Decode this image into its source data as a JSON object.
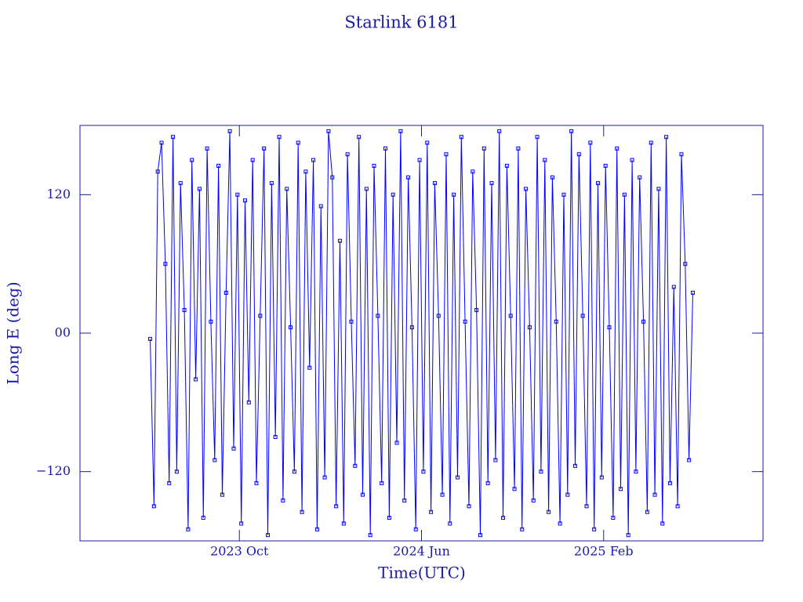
{
  "chart_data": {
    "type": "line",
    "title": "Starlink 6181",
    "x_label": "Time(UTC)",
    "y_label": "Long E (deg)",
    "color": "#0000ff",
    "xlim": [
      "2023-03",
      "2025-09"
    ],
    "xticks": [
      {
        "value": "2023-10",
        "label": "2023 Oct"
      },
      {
        "value": "2024-06",
        "label": "2024 Jun"
      },
      {
        "value": "2025-02",
        "label": "2025 Feb"
      }
    ],
    "ylim": [
      -180,
      180
    ],
    "yticks": [
      {
        "value": -120,
        "label": "−120"
      },
      {
        "value": 0,
        "label": "00"
      },
      120
    ],
    "x": [
      "2023-06",
      "2023-06",
      "2023-06",
      "2023-06",
      "2023-06",
      "2023-06",
      "2023-07",
      "2023-07",
      "2023-07",
      "2023-07",
      "2023-07",
      "2023-07",
      "2023-08",
      "2023-08",
      "2023-08",
      "2023-08",
      "2023-08",
      "2023-08",
      "2023-09",
      "2023-09",
      "2023-09",
      "2023-09",
      "2023-09",
      "2023-09",
      "2023-10",
      "2023-10",
      "2023-10",
      "2023-10",
      "2023-10",
      "2023-10",
      "2023-11",
      "2023-11",
      "2023-11",
      "2023-11",
      "2023-11",
      "2023-11",
      "2023-12",
      "2023-12",
      "2023-12",
      "2023-12",
      "2023-12",
      "2023-12",
      "2024-01",
      "2024-01",
      "2024-01",
      "2024-01",
      "2024-01",
      "2024-01",
      "2024-02",
      "2024-02",
      "2024-02",
      "2024-02",
      "2024-02",
      "2024-02",
      "2024-03",
      "2024-03",
      "2024-03",
      "2024-03",
      "2024-03",
      "2024-03",
      "2024-04",
      "2024-04",
      "2024-04",
      "2024-04",
      "2024-04",
      "2024-04",
      "2024-05",
      "2024-05",
      "2024-05",
      "2024-05",
      "2024-05",
      "2024-05",
      "2024-06",
      "2024-06",
      "2024-06",
      "2024-06",
      "2024-06",
      "2024-06",
      "2024-07",
      "2024-07",
      "2024-07",
      "2024-07",
      "2024-07",
      "2024-07",
      "2024-08",
      "2024-08",
      "2024-08",
      "2024-08",
      "2024-08",
      "2024-08",
      "2024-09",
      "2024-09",
      "2024-09",
      "2024-09",
      "2024-09",
      "2024-09",
      "2024-10",
      "2024-10",
      "2024-10",
      "2024-10",
      "2024-10",
      "2024-10",
      "2024-11",
      "2024-11",
      "2024-11",
      "2024-11",
      "2024-11",
      "2024-11",
      "2024-12",
      "2024-12",
      "2024-12",
      "2024-12",
      "2024-12",
      "2024-12",
      "2025-01",
      "2025-01",
      "2025-01",
      "2025-01",
      "2025-01",
      "2025-01",
      "2025-02",
      "2025-02",
      "2025-02",
      "2025-02",
      "2025-02",
      "2025-02",
      "2025-03",
      "2025-03",
      "2025-03",
      "2025-03",
      "2025-03",
      "2025-03",
      "2025-04",
      "2025-04",
      "2025-04",
      "2025-04",
      "2025-04",
      "2025-04",
      "2025-05",
      "2025-05",
      "2025-05",
      "2025-05",
      "2025-05",
      "2025-05"
    ],
    "values": [
      -5,
      -150,
      140,
      165,
      60,
      -130,
      170,
      -120,
      130,
      20,
      -170,
      150,
      -40,
      125,
      -160,
      160,
      10,
      -110,
      145,
      -140,
      35,
      175,
      -100,
      120,
      -165,
      115,
      -60,
      150,
      -130,
      15,
      160,
      -175,
      130,
      -90,
      170,
      -145,
      125,
      5,
      -120,
      165,
      -155,
      140,
      -30,
      150,
      -170,
      110,
      -125,
      175,
      135,
      -150,
      80,
      -165,
      155,
      10,
      -115,
      170,
      -140,
      125,
      -175,
      145,
      15,
      -130,
      160,
      -160,
      120,
      -95,
      175,
      -145,
      135,
      5,
      -170,
      150,
      -120,
      165,
      -155,
      130,
      15,
      -140,
      155,
      -165,
      120,
      -125,
      170,
      10,
      -150,
      140,
      20,
      -175,
      160,
      -130,
      130,
      -110,
      175,
      -160,
      145,
      15,
      -135,
      160,
      -170,
      125,
      5,
      -145,
      170,
      -120,
      150,
      -155,
      135,
      10,
      -165,
      120,
      -140,
      175,
      -115,
      155,
      15,
      -150,
      165,
      -170,
      130,
      -125,
      145,
      5,
      -160,
      160,
      -135,
      120,
      -175,
      150,
      -120,
      135,
      10,
      -155,
      165,
      -140,
      125,
      -165,
      170,
      -130,
      40,
      -150,
      155,
      60,
      -110,
      35
    ]
  }
}
